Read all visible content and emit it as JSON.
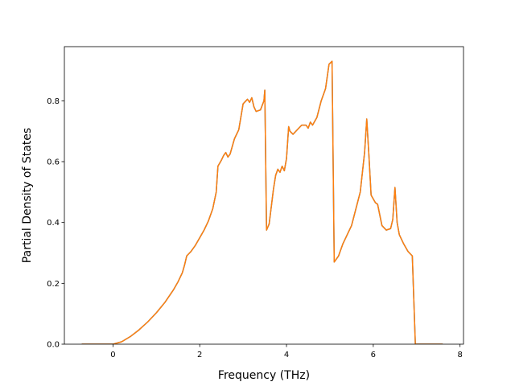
{
  "chart_data": {
    "type": "line",
    "title": "",
    "xlabel": "Frequency (THz)",
    "ylabel": "Partial Density of States",
    "xlim": [
      -1.12,
      8.08
    ],
    "ylim": [
      0,
      0.978
    ],
    "xticks": [
      0,
      2,
      4,
      6,
      8
    ],
    "yticks": [
      0.0,
      0.2,
      0.4,
      0.6,
      0.8
    ],
    "xtick_labels": [
      "0",
      "2",
      "4",
      "6",
      "8"
    ],
    "ytick_labels": [
      "0.0",
      "0.2",
      "0.4",
      "0.6",
      "0.8"
    ],
    "grid": false,
    "legend": "none",
    "series": [
      {
        "color": "#1f77b4",
        "x": [
          -0.72,
          0.0,
          0.2,
          0.4,
          0.6,
          0.8,
          1.0,
          1.2,
          1.4,
          1.5,
          1.6,
          1.65,
          1.7,
          1.8,
          1.9,
          2.0,
          2.1,
          2.2,
          2.3,
          2.38,
          2.42,
          2.5,
          2.55,
          2.6,
          2.65,
          2.7,
          2.8,
          2.9,
          3.0,
          3.1,
          3.15,
          3.2,
          3.25,
          3.3,
          3.4,
          3.48,
          3.5,
          3.54,
          3.6,
          3.7,
          3.75,
          3.8,
          3.85,
          3.9,
          3.95,
          4.0,
          4.05,
          4.08,
          4.15,
          4.25,
          4.35,
          4.45,
          4.5,
          4.55,
          4.6,
          4.7,
          4.8,
          4.9,
          4.98,
          5.05,
          5.1,
          5.2,
          5.3,
          5.5,
          5.7,
          5.8,
          5.85,
          5.9,
          5.95,
          6.05,
          6.1,
          6.2,
          6.3,
          6.4,
          6.45,
          6.5,
          6.55,
          6.6,
          6.7,
          6.8,
          6.9,
          6.97,
          7.1,
          7.6
        ],
        "y": [
          0.0,
          0.0,
          0.008,
          0.025,
          0.047,
          0.073,
          0.103,
          0.138,
          0.18,
          0.205,
          0.235,
          0.26,
          0.29,
          0.305,
          0.325,
          0.35,
          0.375,
          0.405,
          0.445,
          0.5,
          0.585,
          0.605,
          0.62,
          0.63,
          0.615,
          0.625,
          0.675,
          0.705,
          0.79,
          0.805,
          0.795,
          0.81,
          0.78,
          0.765,
          0.77,
          0.8,
          0.835,
          0.375,
          0.395,
          0.51,
          0.555,
          0.575,
          0.565,
          0.585,
          0.57,
          0.61,
          0.715,
          0.7,
          0.69,
          0.705,
          0.72,
          0.72,
          0.71,
          0.73,
          0.72,
          0.745,
          0.8,
          0.84,
          0.92,
          0.93,
          0.27,
          0.29,
          0.33,
          0.39,
          0.5,
          0.63,
          0.74,
          0.62,
          0.49,
          0.465,
          0.46,
          0.39,
          0.375,
          0.38,
          0.41,
          0.515,
          0.4,
          0.36,
          0.33,
          0.305,
          0.29,
          0.0,
          0.0,
          0.0
        ]
      },
      {
        "color": "#ff7f0e",
        "x": [
          -0.72,
          0.0,
          0.2,
          0.4,
          0.6,
          0.8,
          1.0,
          1.2,
          1.4,
          1.5,
          1.6,
          1.65,
          1.7,
          1.8,
          1.9,
          2.0,
          2.1,
          2.2,
          2.3,
          2.38,
          2.42,
          2.5,
          2.55,
          2.6,
          2.65,
          2.7,
          2.8,
          2.9,
          3.0,
          3.1,
          3.15,
          3.2,
          3.25,
          3.3,
          3.4,
          3.48,
          3.5,
          3.54,
          3.6,
          3.7,
          3.75,
          3.8,
          3.85,
          3.9,
          3.95,
          4.0,
          4.05,
          4.08,
          4.15,
          4.25,
          4.35,
          4.45,
          4.5,
          4.55,
          4.6,
          4.7,
          4.8,
          4.9,
          4.98,
          5.05,
          5.1,
          5.2,
          5.3,
          5.5,
          5.7,
          5.8,
          5.85,
          5.9,
          5.95,
          6.05,
          6.1,
          6.2,
          6.3,
          6.4,
          6.45,
          6.5,
          6.55,
          6.6,
          6.7,
          6.8,
          6.9,
          6.97,
          7.1,
          7.6
        ],
        "y": [
          0.0,
          0.0,
          0.008,
          0.025,
          0.047,
          0.073,
          0.103,
          0.138,
          0.18,
          0.205,
          0.235,
          0.26,
          0.29,
          0.305,
          0.325,
          0.35,
          0.375,
          0.405,
          0.445,
          0.5,
          0.585,
          0.605,
          0.62,
          0.63,
          0.615,
          0.625,
          0.675,
          0.705,
          0.79,
          0.805,
          0.795,
          0.81,
          0.78,
          0.765,
          0.77,
          0.8,
          0.835,
          0.375,
          0.395,
          0.51,
          0.555,
          0.575,
          0.565,
          0.585,
          0.57,
          0.61,
          0.715,
          0.7,
          0.69,
          0.705,
          0.72,
          0.72,
          0.71,
          0.73,
          0.72,
          0.745,
          0.8,
          0.84,
          0.92,
          0.93,
          0.27,
          0.29,
          0.33,
          0.39,
          0.5,
          0.63,
          0.74,
          0.62,
          0.49,
          0.465,
          0.46,
          0.39,
          0.375,
          0.38,
          0.41,
          0.515,
          0.4,
          0.36,
          0.33,
          0.305,
          0.29,
          0.0,
          0.0,
          0.0
        ]
      }
    ]
  }
}
